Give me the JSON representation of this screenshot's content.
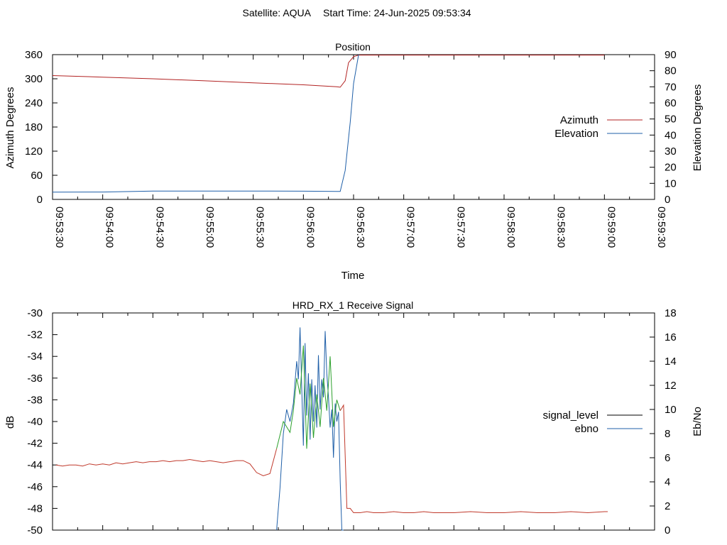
{
  "header": {
    "satellite": "Satellite: AQUA",
    "start_time": "Start Time: 24-Jun-2025 09:53:34"
  },
  "colors": {
    "azimuth": "#b22222",
    "elevation": "#1f5fa8",
    "signal_level_legend": "#000000",
    "ebno_legend": "#1f5fa8",
    "signal_red": "#c0392b",
    "signal_green": "#2ca02c",
    "ebno_blue": "#1f5fa8",
    "axis": "#000000"
  },
  "chart_data": [
    {
      "type": "line",
      "title": "Position",
      "xlabel": "Time",
      "ylabel_left": "Azimuth Degrees",
      "ylabel_right": "Elevation Degrees",
      "ylim_left": [
        0,
        360
      ],
      "ylim_right": [
        0,
        90
      ],
      "yticks_left": [
        "0",
        "60",
        "120",
        "180",
        "240",
        "300",
        "360"
      ],
      "yticks_right": [
        "0",
        "10",
        "20",
        "30",
        "40",
        "50",
        "60",
        "70",
        "80",
        "90"
      ],
      "xlim": [
        "09:53:30",
        "09:59:30"
      ],
      "xticks": [
        "09:53:30",
        "09:54:00",
        "09:54:30",
        "09:55:00",
        "09:55:30",
        "09:56:00",
        "09:56:30",
        "09:57:00",
        "09:57:30",
        "09:58:00",
        "09:58:30",
        "09:59:00",
        "09:59:30"
      ],
      "legend_position": "right",
      "grid": false,
      "series": [
        {
          "name": "Azimuth",
          "axis": "left",
          "x": [
            "09:53:30",
            "09:54:00",
            "09:54:30",
            "09:55:00",
            "09:55:30",
            "09:56:00",
            "09:56:20",
            "09:56:22",
            "09:56:25",
            "09:56:27",
            "09:56:30",
            "09:56:33",
            "09:56:45",
            "09:57:30",
            "09:58:30",
            "09:59:00"
          ],
          "y": [
            308,
            304,
            300,
            295,
            290,
            285,
            280,
            279,
            295,
            340,
            355,
            359,
            359,
            359,
            359,
            359
          ]
        },
        {
          "name": "Elevation",
          "axis": "right",
          "x": [
            "09:53:30",
            "09:54:00",
            "09:54:30",
            "09:55:00",
            "09:55:30",
            "09:56:00",
            "09:56:20",
            "09:56:22",
            "09:56:25",
            "09:56:28",
            "09:56:30",
            "09:56:33"
          ],
          "y": [
            4.5,
            4.6,
            5.2,
            5.2,
            5.2,
            5.1,
            5,
            5,
            18,
            48,
            72,
            90
          ]
        }
      ]
    },
    {
      "type": "line",
      "title": "HRD_RX_1 Receive Signal",
      "ylabel_left": "dB",
      "ylabel_right": "Eb/No",
      "ylim_left": [
        -50,
        -30
      ],
      "ylim_right": [
        0,
        18
      ],
      "yticks_left": [
        "-50",
        "-48",
        "-46",
        "-44",
        "-42",
        "-40",
        "-38",
        "-36",
        "-34",
        "-32",
        "-30"
      ],
      "yticks_right": [
        "0",
        "2",
        "4",
        "6",
        "8",
        "10",
        "12",
        "14",
        "16",
        "18"
      ],
      "xlim": [
        "09:53:30",
        "09:59:30"
      ],
      "legend_position": "right",
      "grid": false,
      "series": [
        {
          "name": "signal_level",
          "axis": "left",
          "x": [
            "09:53:32",
            "09:53:36",
            "09:53:40",
            "09:53:44",
            "09:53:48",
            "09:53:52",
            "09:53:56",
            "09:54:00",
            "09:54:04",
            "09:54:08",
            "09:54:12",
            "09:54:16",
            "09:54:20",
            "09:54:24",
            "09:54:28",
            "09:54:32",
            "09:54:36",
            "09:54:40",
            "09:54:44",
            "09:54:48",
            "09:54:52",
            "09:54:56",
            "09:55:00",
            "09:55:04",
            "09:55:08",
            "09:55:12",
            "09:55:16",
            "09:55:20",
            "09:55:24",
            "09:55:28",
            "09:55:32",
            "09:55:36",
            "09:55:40",
            "09:55:44",
            "09:55:48",
            "09:55:50",
            "09:55:52",
            "09:55:54",
            "09:55:56",
            "09:55:58",
            "09:56:00",
            "09:56:02",
            "09:56:04",
            "09:56:06",
            "09:56:08",
            "09:56:10",
            "09:56:12",
            "09:56:14",
            "09:56:16",
            "09:56:18",
            "09:56:20",
            "09:56:22",
            "09:56:24",
            "09:56:26",
            "09:56:28",
            "09:56:30",
            "09:56:32",
            "09:56:34",
            "09:56:38",
            "09:56:42",
            "09:56:48",
            "09:56:54",
            "09:57:00",
            "09:57:06",
            "09:57:12",
            "09:57:18",
            "09:57:24",
            "09:57:30",
            "09:57:40",
            "09:57:50",
            "09:58:00",
            "09:58:10",
            "09:58:20",
            "09:58:30",
            "09:58:40",
            "09:58:50",
            "09:59:00",
            "09:59:02"
          ],
          "y": [
            -44.0,
            -44.1,
            -44.0,
            -44.0,
            -44.1,
            -43.9,
            -44.0,
            -43.9,
            -44.0,
            -43.8,
            -43.9,
            -43.8,
            -43.7,
            -43.8,
            -43.7,
            -43.7,
            -43.6,
            -43.7,
            -43.6,
            -43.6,
            -43.5,
            -43.6,
            -43.7,
            -43.6,
            -43.7,
            -43.8,
            -43.7,
            -43.6,
            -43.6,
            -43.9,
            -44.7,
            -45.0,
            -44.8,
            -42.5,
            -40.0,
            -40.5,
            -41.0,
            -39.0,
            -36.0,
            -37.5,
            -33.0,
            -42.5,
            -36.5,
            -41.5,
            -37.5,
            -40.5,
            -36.0,
            -39.0,
            -34.0,
            -40.5,
            -38.0,
            -39.0,
            -38.5,
            -48.0,
            -48.0,
            -48.4,
            -48.4,
            -48.4,
            -48.3,
            -48.4,
            -48.4,
            -48.3,
            -48.4,
            -48.4,
            -48.3,
            -48.4,
            -48.4,
            -48.4,
            -48.3,
            -48.4,
            -48.4,
            -48.3,
            -48.4,
            -48.4,
            -48.3,
            -48.4,
            -48.3,
            -48.3
          ]
        },
        {
          "name": "ebno",
          "axis": "right",
          "x": [
            "09:55:44",
            "09:55:46",
            "09:55:48",
            "09:55:50",
            "09:55:52",
            "09:55:54",
            "09:55:56",
            "09:55:57",
            "09:55:58",
            "09:56:00",
            "09:56:01",
            "09:56:02",
            "09:56:03",
            "09:56:04",
            "09:56:05",
            "09:56:06",
            "09:56:07",
            "09:56:08",
            "09:56:09",
            "09:56:10",
            "09:56:11",
            "09:56:12",
            "09:56:13",
            "09:56:14",
            "09:56:15",
            "09:56:16",
            "09:56:17",
            "09:56:18",
            "09:56:19",
            "09:56:20",
            "09:56:21",
            "09:56:22",
            "09:56:23",
            "09:56:24"
          ],
          "y": [
            0.0,
            3.5,
            8.0,
            10.0,
            9.0,
            10.5,
            14.0,
            12.5,
            16.8,
            7.0,
            15.5,
            9.5,
            13.0,
            7.5,
            12.5,
            9.0,
            12.0,
            8.5,
            14.5,
            10.0,
            12.5,
            11.0,
            16.5,
            13.0,
            11.0,
            8.5,
            10.0,
            6.0,
            10.5,
            9.0,
            9.8,
            4.0,
            0.0,
            0.0
          ]
        }
      ]
    }
  ]
}
